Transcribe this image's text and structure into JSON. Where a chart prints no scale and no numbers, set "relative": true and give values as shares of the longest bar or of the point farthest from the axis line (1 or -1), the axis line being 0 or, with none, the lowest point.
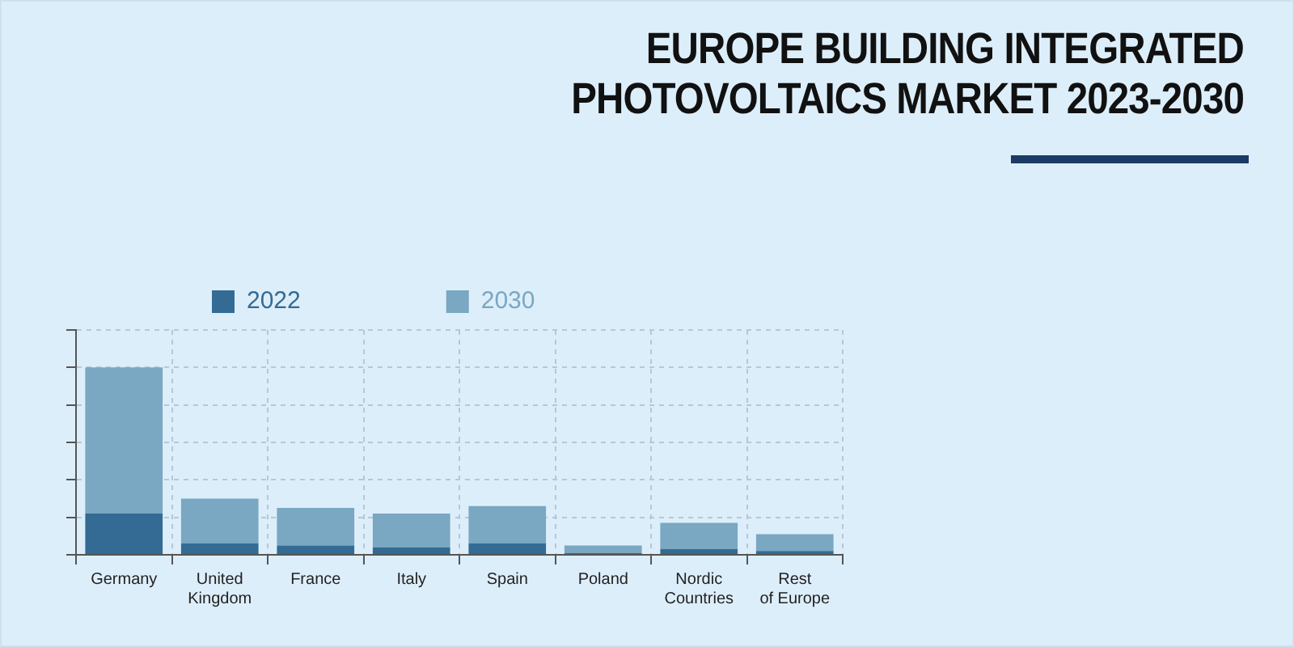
{
  "chart_data": {
    "type": "bar",
    "title": "EUROPE BUILDING INTEGRATED PHOTOVOLTAICS MARKET 2023-2030",
    "categories": [
      "Germany",
      "United Kingdom",
      "France",
      "Italy",
      "Spain",
      "Poland",
      "Nordic Countries",
      "Rest of Europe"
    ],
    "series": [
      {
        "name": "2022",
        "color": "#336b94",
        "values": [
          0.22,
          0.06,
          0.05,
          0.04,
          0.06,
          0.01,
          0.03,
          0.02
        ]
      },
      {
        "name": "2030",
        "color": "#7aa7c1",
        "values": [
          0.78,
          0.24,
          0.2,
          0.18,
          0.2,
          0.04,
          0.14,
          0.09
        ]
      }
    ],
    "stacked": true,
    "relative": true,
    "grid": true,
    "legend": "top"
  }
}
